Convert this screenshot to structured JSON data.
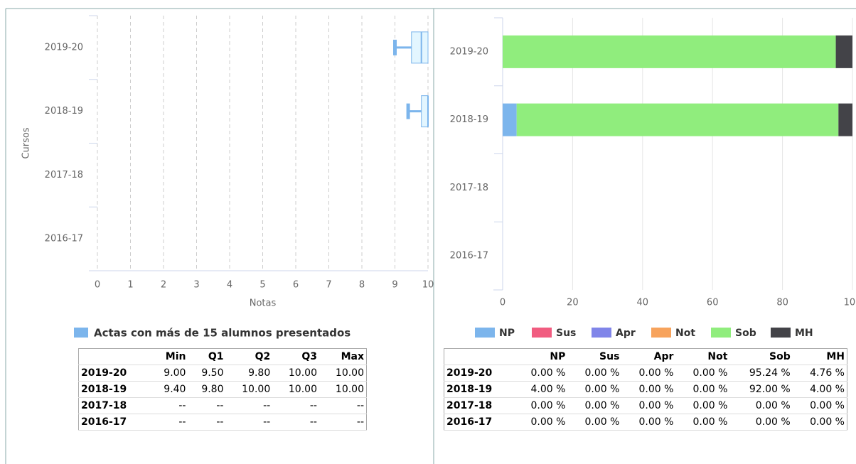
{
  "chart_data": [
    {
      "type": "boxplot",
      "categories": [
        "2019-20",
        "2018-19",
        "2017-18",
        "2016-17"
      ],
      "xlabel": "Notas",
      "ylabel": "Cursos",
      "xlim": [
        0,
        10
      ],
      "xticks": [
        0,
        1,
        2,
        3,
        4,
        5,
        6,
        7,
        8,
        9,
        10
      ],
      "grid": true,
      "series": [
        {
          "name": "Actas con más de 15 alumnos presentados",
          "color": "#7cb5ec",
          "min": [
            9.0,
            9.4,
            null,
            null
          ],
          "q1": [
            9.5,
            9.8,
            null,
            null
          ],
          "median": [
            9.8,
            10,
            null,
            null
          ],
          "q3": [
            10,
            10,
            null,
            null
          ],
          "max": [
            10,
            10,
            null,
            null
          ]
        }
      ]
    },
    {
      "type": "stacked_bar",
      "categories": [
        "2019-20",
        "2018-19",
        "2017-18",
        "2016-17"
      ],
      "xlim": [
        0,
        100
      ],
      "xticks": [
        0,
        20,
        40,
        60,
        80,
        100
      ],
      "grid": true,
      "series": [
        {
          "name": "NP",
          "color": "#7cb5ec",
          "values": [
            0,
            4,
            0,
            0
          ]
        },
        {
          "name": "Sus",
          "color": "#f15c80",
          "values": [
            0,
            0,
            0,
            0
          ]
        },
        {
          "name": "Apr",
          "color": "#8085e9",
          "values": [
            0,
            0,
            0,
            0
          ]
        },
        {
          "name": "Not",
          "color": "#f7a35c",
          "values": [
            0,
            0,
            0,
            0
          ]
        },
        {
          "name": "Sob",
          "color": "#90ed7d",
          "values": [
            95.24,
            92,
            0,
            0
          ]
        },
        {
          "name": "MH",
          "color": "#434348",
          "values": [
            4.76,
            4,
            0,
            0
          ]
        }
      ]
    }
  ],
  "tables": [
    {
      "header": [
        "Min",
        "Q1",
        "Q2",
        "Q3",
        "Max"
      ],
      "rows": [
        [
          "2019-20",
          "9.00",
          "9.50",
          "9.80",
          "10.00",
          "10.00"
        ],
        [
          "2018-19",
          "9.40",
          "9.80",
          "10.00",
          "10.00",
          "10.00"
        ],
        [
          "2017-18",
          "--",
          "--",
          "--",
          "--",
          "--"
        ],
        [
          "2016-17",
          "--",
          "--",
          "--",
          "--",
          "--"
        ]
      ]
    },
    {
      "rows": [
        [
          "2019-20",
          "0.00 %",
          "0.00 %",
          "0.00 %",
          "0.00 %",
          "95.24 %",
          "4.76 %"
        ],
        [
          "2018-19",
          "4.00 %",
          "0.00 %",
          "0.00 %",
          "0.00 %",
          "92.00 %",
          "4.00 %"
        ],
        [
          "2017-18",
          "0.00 %",
          "0.00 %",
          "0.00 %",
          "0.00 %",
          "0.00 %",
          "0.00 %"
        ],
        [
          "2016-17",
          "0.00 %",
          "0.00 %",
          "0.00 %",
          "0.00 %",
          "0.00 %",
          "0.00 %"
        ]
      ]
    }
  ]
}
